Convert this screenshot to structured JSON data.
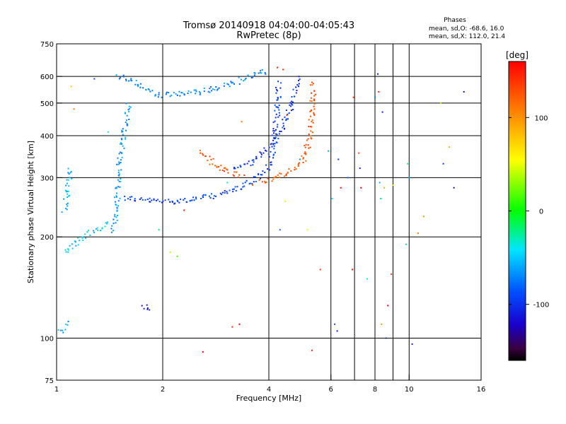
{
  "chart_data": {
    "type": "scatter",
    "title": "Tromsø 20140918 04:04:00-04:05:43",
    "subtitle": "RwPretec (8p)",
    "xlabel": "Frequency [MHz]",
    "ylabel": "Stationary phase Virtual Height [km]",
    "x_scale": "log",
    "y_scale": "log",
    "xlim": [
      1,
      16
    ],
    "ylim": [
      75,
      750
    ],
    "x_ticks": [
      1,
      2,
      4,
      6,
      8,
      10,
      16
    ],
    "y_ticks": [
      75,
      100,
      200,
      300,
      400,
      500,
      600,
      750
    ],
    "grid": true,
    "colorbar": {
      "label": "[deg]",
      "ticks": [
        100,
        0,
        -100
      ],
      "range": [
        -160,
        160
      ]
    },
    "phases": {
      "heading": "Phases",
      "line_o": "mean, sd,O: -68.6, 16.0",
      "line_x": "mean, sd,X: 112.0, 21.4"
    },
    "traces": [
      {
        "points": [
          [
            1.55,
            262
          ],
          [
            1.7,
            258
          ],
          [
            1.85,
            256
          ],
          [
            2.0,
            255
          ],
          [
            2.2,
            256
          ],
          [
            2.4,
            258
          ],
          [
            2.6,
            261
          ],
          [
            2.8,
            265
          ],
          [
            3.0,
            270
          ],
          [
            3.2,
            277
          ],
          [
            3.4,
            285
          ],
          [
            3.6,
            294
          ],
          [
            3.8,
            305
          ],
          [
            3.95,
            320
          ],
          [
            4.05,
            340
          ],
          [
            4.12,
            370
          ],
          [
            4.18,
            410
          ],
          [
            4.22,
            460
          ],
          [
            4.25,
            520
          ],
          [
            4.27,
            580
          ]
        ],
        "phase": -95,
        "spread": 0.012
      },
      {
        "points": [
          [
            3.8,
            294
          ],
          [
            4.0,
            296
          ],
          [
            4.2,
            300
          ],
          [
            4.4,
            306
          ],
          [
            4.6,
            314
          ],
          [
            4.8,
            325
          ],
          [
            5.0,
            340
          ],
          [
            5.1,
            360
          ],
          [
            5.2,
            390
          ],
          [
            5.25,
            420
          ],
          [
            5.3,
            470
          ],
          [
            5.33,
            520
          ],
          [
            5.36,
            580
          ]
        ],
        "phase": 125,
        "spread": 0.012
      },
      {
        "points": [
          [
            2.55,
            360
          ],
          [
            2.7,
            340
          ],
          [
            2.85,
            325
          ],
          [
            3.0,
            315
          ],
          [
            3.2,
            308
          ],
          [
            3.4,
            303
          ]
        ],
        "phase": 130,
        "spread": 0.01
      },
      {
        "points": [
          [
            3.2,
            320
          ],
          [
            3.4,
            325
          ],
          [
            3.6,
            335
          ],
          [
            3.8,
            350
          ],
          [
            4.0,
            370
          ],
          [
            4.2,
            395
          ],
          [
            4.4,
            430
          ],
          [
            4.6,
            480
          ],
          [
            4.75,
            540
          ],
          [
            4.85,
            600
          ]
        ],
        "phase": -100,
        "spread": 0.012
      },
      {
        "points": [
          [
            1.5,
            600
          ],
          [
            1.6,
            590
          ],
          [
            1.7,
            570
          ],
          [
            1.8,
            550
          ],
          [
            1.9,
            535
          ],
          [
            2.0,
            528
          ],
          [
            2.2,
            530
          ],
          [
            2.4,
            535
          ],
          [
            2.6,
            542
          ],
          [
            2.8,
            550
          ],
          [
            3.0,
            560
          ],
          [
            3.2,
            575
          ],
          [
            3.4,
            590
          ],
          [
            3.6,
            605
          ],
          [
            3.8,
            615
          ],
          [
            4.0,
            625
          ]
        ],
        "phase": -70,
        "spread": 0.012
      },
      {
        "points": [
          [
            1.45,
            210
          ],
          [
            1.48,
            250
          ],
          [
            1.5,
            300
          ],
          [
            1.52,
            350
          ],
          [
            1.55,
            400
          ],
          [
            1.58,
            450
          ],
          [
            1.6,
            500
          ]
        ],
        "phase": -65,
        "spread": 0.012
      },
      {
        "points": [
          [
            1.05,
            180
          ],
          [
            1.1,
            188
          ],
          [
            1.15,
            195
          ],
          [
            1.2,
            200
          ],
          [
            1.25,
            205
          ],
          [
            1.3,
            210
          ],
          [
            1.35,
            215
          ],
          [
            1.4,
            222
          ]
        ],
        "phase": -45,
        "spread": 0.015
      },
      {
        "points": [
          [
            1.05,
            240
          ],
          [
            1.08,
            280
          ],
          [
            1.1,
            320
          ]
        ],
        "phase": -55,
        "spread": 0.012
      },
      {
        "points": [
          [
            1.02,
            105
          ],
          [
            1.05,
            108
          ],
          [
            1.08,
            112
          ]
        ],
        "phase": -60,
        "spread": 0.01
      },
      {
        "points": [
          [
            1.75,
            125
          ],
          [
            1.85,
            122
          ]
        ],
        "phase": -115,
        "spread": 0.008
      },
      {
        "points": [
          [
            4.3,
            628
          ],
          [
            4.38,
            632
          ]
        ],
        "phase": 140,
        "spread": 0.005
      }
    ],
    "scatter": [
      [
        1.1,
        560,
        80
      ],
      [
        1.12,
        480,
        110
      ],
      [
        1.28,
        590,
        -90
      ],
      [
        1.4,
        410,
        -40
      ],
      [
        1.95,
        210,
        -20
      ],
      [
        2.1,
        180,
        40
      ],
      [
        2.2,
        175,
        10
      ],
      [
        2.3,
        240,
        150
      ],
      [
        2.6,
        91,
        160
      ],
      [
        3.05,
        290,
        -30
      ],
      [
        3.15,
        108,
        140
      ],
      [
        3.3,
        110,
        160
      ],
      [
        3.35,
        440,
        110
      ],
      [
        3.6,
        285,
        120
      ],
      [
        4.3,
        210,
        -80
      ],
      [
        4.45,
        255,
        60
      ],
      [
        4.5,
        460,
        140
      ],
      [
        4.9,
        340,
        -70
      ],
      [
        5.15,
        210,
        60
      ],
      [
        5.3,
        92,
        150
      ],
      [
        5.6,
        160,
        140
      ],
      [
        5.9,
        360,
        -60
      ],
      [
        6.05,
        260,
        -40
      ],
      [
        6.15,
        110,
        -90
      ],
      [
        6.25,
        105,
        -110
      ],
      [
        6.3,
        340,
        -100
      ],
      [
        6.4,
        280,
        160
      ],
      [
        6.7,
        300,
        -80
      ],
      [
        6.9,
        160,
        150
      ],
      [
        6.95,
        520,
        140
      ],
      [
        7.2,
        355,
        130
      ],
      [
        7.25,
        320,
        -110
      ],
      [
        7.3,
        280,
        160
      ],
      [
        7.6,
        150,
        -30
      ],
      [
        8.0,
        520,
        -70
      ],
      [
        8.15,
        610,
        -110
      ],
      [
        8.2,
        540,
        150
      ],
      [
        8.25,
        290,
        -60
      ],
      [
        8.3,
        260,
        -30
      ],
      [
        8.35,
        110,
        100
      ],
      [
        8.4,
        470,
        -110
      ],
      [
        8.5,
        280,
        90
      ],
      [
        8.6,
        100,
        -100
      ],
      [
        8.7,
        125,
        160
      ],
      [
        8.9,
        155,
        140
      ],
      [
        9.0,
        285,
        70
      ],
      [
        9.8,
        190,
        -50
      ],
      [
        9.9,
        330,
        -20
      ],
      [
        10.0,
        300,
        -60
      ],
      [
        10.2,
        96,
        -100
      ],
      [
        10.6,
        205,
        110
      ],
      [
        11.0,
        230,
        100
      ],
      [
        12.3,
        500,
        30
      ],
      [
        12.5,
        330,
        -100
      ],
      [
        13.0,
        370,
        90
      ],
      [
        13.4,
        280,
        -130
      ],
      [
        14.3,
        540,
        -120
      ]
    ]
  }
}
